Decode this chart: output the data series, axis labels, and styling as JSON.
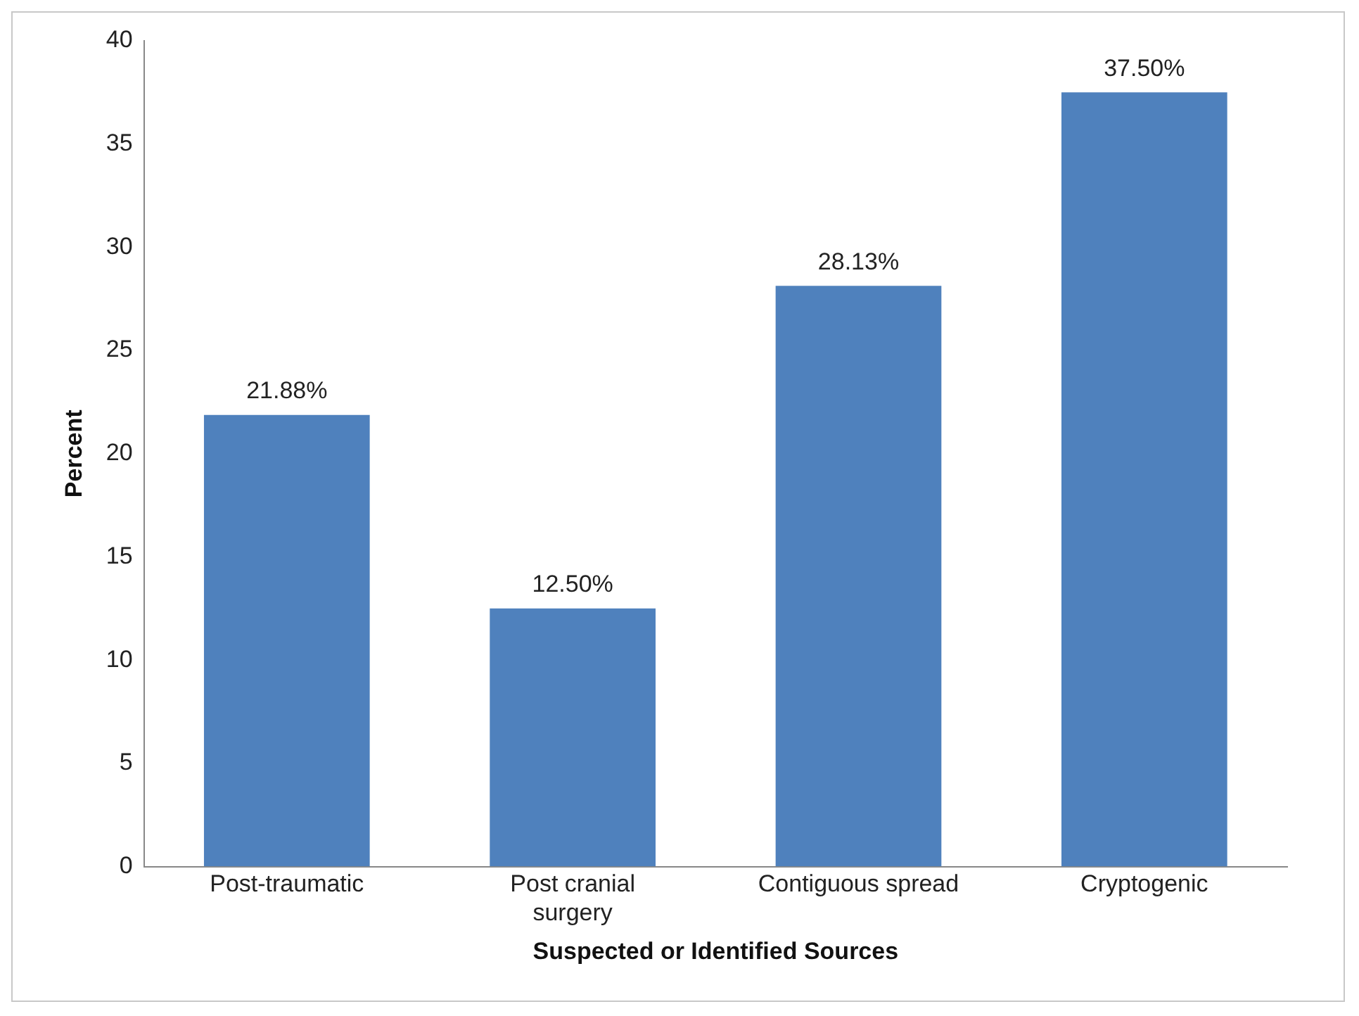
{
  "chart_data": {
    "type": "bar",
    "xlabel": "Suspected or Identified Sources",
    "ylabel": "Percent",
    "categories": [
      "Post-traumatic",
      "Post cranial surgery",
      "Contiguous spread",
      "Cryptogenic"
    ],
    "values": [
      21.88,
      12.5,
      28.13,
      37.5
    ],
    "value_labels": [
      "21.88%",
      "12.50%",
      "28.13%",
      "37.50%"
    ],
    "color": "#4f81bd",
    "ylim": [
      0,
      40
    ],
    "yticks": [
      0,
      5,
      10,
      15,
      20,
      25,
      30,
      35,
      40
    ],
    "grid": false,
    "legend": false
  }
}
